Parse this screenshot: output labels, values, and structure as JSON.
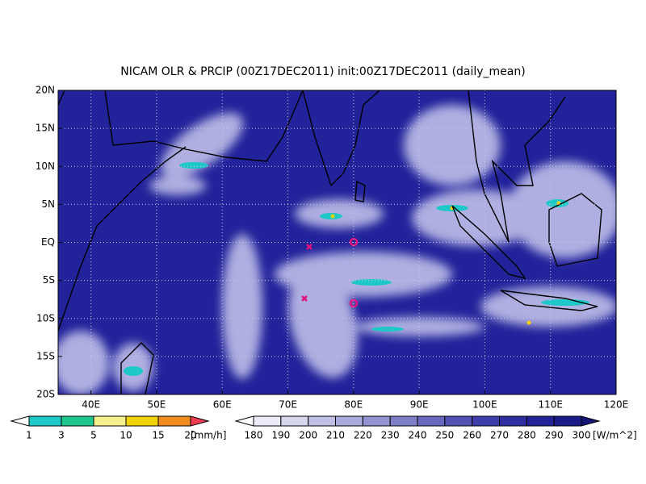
{
  "title": "NICAM OLR & PRCIP (00Z17DEC2011) init:00Z17DEC2011 (daily_mean)",
  "map": {
    "xlim": [
      35,
      120
    ],
    "xticks": [
      {
        "value": 40,
        "label": "40E"
      },
      {
        "value": 50,
        "label": "50E"
      },
      {
        "value": 60,
        "label": "60E"
      },
      {
        "value": 70,
        "label": "70E"
      },
      {
        "value": 80,
        "label": "80E"
      },
      {
        "value": 90,
        "label": "90E"
      },
      {
        "value": 100,
        "label": "100E"
      },
      {
        "value": 110,
        "label": "110E"
      },
      {
        "value": 120,
        "label": "120E"
      }
    ],
    "ylim": [
      -20,
      20
    ],
    "yticks": [
      {
        "value": 20,
        "label": "20N"
      },
      {
        "value": 15,
        "label": "15N"
      },
      {
        "value": 10,
        "label": "10N"
      },
      {
        "value": 5,
        "label": "5N"
      },
      {
        "value": 0,
        "label": "EQ"
      },
      {
        "value": -5,
        "label": "5S"
      },
      {
        "value": -10,
        "label": "10S"
      },
      {
        "value": -15,
        "label": "15S"
      },
      {
        "value": -20,
        "label": "20S"
      }
    ]
  },
  "precip_colorbar": {
    "levels": [
      1,
      3,
      5,
      10,
      15,
      20
    ],
    "colors": [
      "#ffffff",
      "#1ec8c8",
      "#1ec88c",
      "#f5f08c",
      "#f0d200",
      "#f08c1e",
      "#f03c50"
    ],
    "unit": "[mm/h]"
  },
  "olr_colorbar": {
    "levels": [
      180,
      190,
      200,
      210,
      220,
      230,
      240,
      250,
      260,
      270,
      280,
      290,
      300
    ],
    "colors": [
      "#ffffff",
      "#ececf8",
      "#d6d6ee",
      "#c0c0e4",
      "#aaaadc",
      "#9494d2",
      "#7e7ec8",
      "#6868be",
      "#5252b4",
      "#3e3eaa",
      "#2e2ea0",
      "#222296",
      "#1a1a88",
      "#141478"
    ],
    "unit": "[W/m^2]"
  }
}
